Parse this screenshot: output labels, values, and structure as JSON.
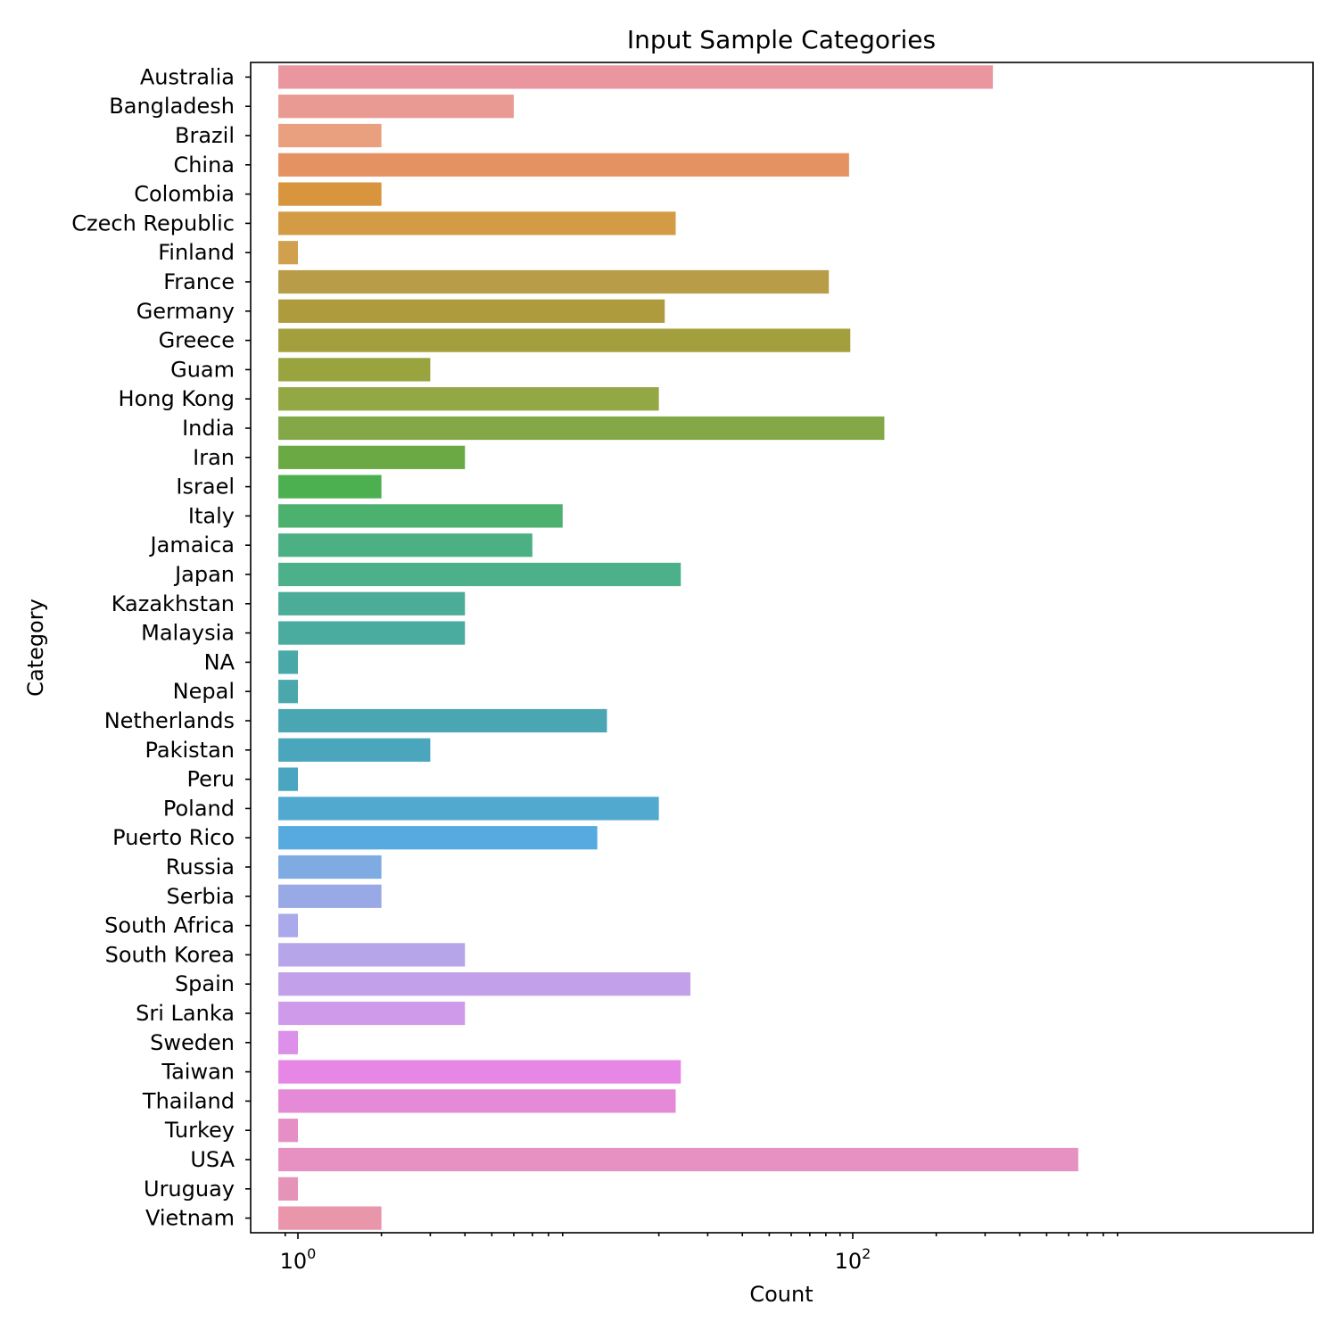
{
  "chart_data": {
    "type": "bar",
    "orientation": "horizontal",
    "title": "Input Sample Categories",
    "xlabel": "Count",
    "ylabel": "Category",
    "xscale": "log",
    "xlim": [
      0.85,
      1100
    ],
    "x_major_ticks": [
      {
        "value": 1,
        "base": "10",
        "exponent": "0"
      },
      {
        "value": 100,
        "base": "10",
        "exponent": "2"
      }
    ],
    "grid": false,
    "legend": "none",
    "categories": [
      "Australia",
      "Bangladesh",
      "Brazil",
      "China",
      "Colombia",
      "Czech Republic",
      "Finland",
      "France",
      "Germany",
      "Greece",
      "Guam",
      "Hong Kong",
      "India",
      "Iran",
      "Israel",
      "Italy",
      "Jamaica",
      "Japan",
      "Kazakhstan",
      "Malaysia",
      "NA",
      "Nepal",
      "Netherlands",
      "Pakistan",
      "Peru",
      "Poland",
      "Puerto Rico",
      "Russia",
      "Serbia",
      "South Africa",
      "South Korea",
      "Spain",
      "Sri Lanka",
      "Sweden",
      "Taiwan",
      "Thailand",
      "Turkey",
      "USA",
      "Uruguay",
      "Vietnam"
    ],
    "values": [
      320,
      6,
      2,
      97,
      2,
      23,
      1,
      82,
      21,
      98,
      3,
      20,
      130,
      4,
      2,
      9,
      7,
      24,
      4,
      4,
      1,
      1,
      13,
      3,
      1,
      20,
      12,
      2,
      2,
      1,
      4,
      26,
      4,
      1,
      24,
      23,
      1,
      650,
      1,
      2
    ],
    "colors": [
      "#e9969f",
      "#e99a93",
      "#e9a07f",
      "#e59262",
      "#d9953e",
      "#d49b45",
      "#d1a04f",
      "#b99c47",
      "#ae9b3e",
      "#a39f3e",
      "#9aa43f",
      "#93a744",
      "#84a848",
      "#6aa944",
      "#4cb050",
      "#4cb06e",
      "#4bb083",
      "#4cb08b",
      "#4bad98",
      "#4aab9f",
      "#4aa9a8",
      "#4aa8ad",
      "#4aa6b3",
      "#4aa6bc",
      "#4aa5c1",
      "#52a9d0",
      "#57aadf",
      "#7fabe3",
      "#99a9e6",
      "#a9a9eb",
      "#b7a5ea",
      "#c3a1ea",
      "#d09aea",
      "#dc90e9",
      "#e687e6",
      "#e48ad6",
      "#e68fc7",
      "#e691c2",
      "#e693b8",
      "#e996ab"
    ]
  }
}
